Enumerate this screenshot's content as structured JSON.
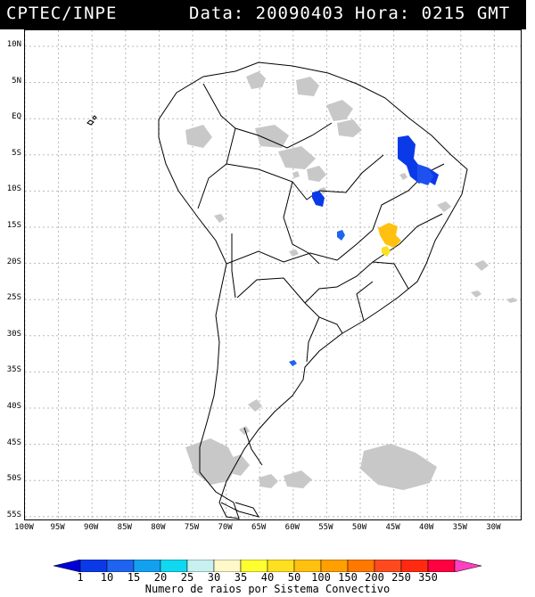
{
  "header": {
    "source": "CPTEC/INPE",
    "data_text": "Data: 20090403",
    "hora_text": "Hora: 0215 GMT"
  },
  "map": {
    "lat_labels": [
      "10N",
      "5N",
      "EQ",
      "5S",
      "10S",
      "15S",
      "20S",
      "25S",
      "30S",
      "35S",
      "40S",
      "45S",
      "50S",
      "55S"
    ],
    "lon_labels": [
      "100W",
      "95W",
      "90W",
      "85W",
      "80W",
      "75W",
      "70W",
      "65W",
      "60W",
      "55W",
      "50W",
      "45W",
      "40W",
      "35W",
      "30W"
    ],
    "colors": {
      "land_cloud": "#c8c8c8",
      "borders": "#000000",
      "grid": "#b0b0b0"
    }
  },
  "colorbar": {
    "labels": [
      "1",
      "10",
      "15",
      "20",
      "25",
      "30",
      "35",
      "40",
      "50",
      "100",
      "150",
      "200",
      "250",
      "350"
    ],
    "colors": [
      "#0000d8",
      "#0a3ae8",
      "#1e64f0",
      "#14a0f0",
      "#10d8f0",
      "#c8f0f0",
      "#fff8c8",
      "#ffff30",
      "#ffe020",
      "#ffc010",
      "#ffa000",
      "#ff7800",
      "#ff4a20",
      "#ff2a10",
      "#ff0040",
      "#ff40c0"
    ],
    "title": "Numero de raios por Sistema Convectivo"
  }
}
